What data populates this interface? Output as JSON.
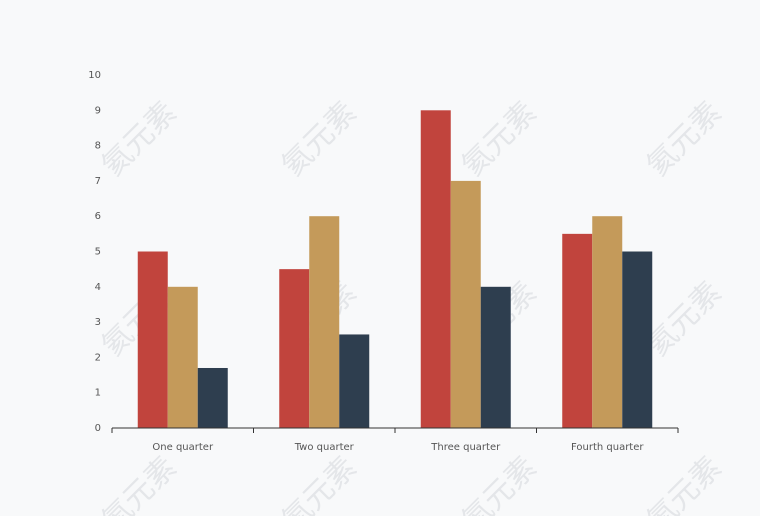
{
  "chart_data": {
    "type": "bar",
    "categories": [
      "One quarter",
      "Two quarter",
      "Three quarter",
      "Fourth quarter"
    ],
    "series": [
      {
        "color": "#c1443d",
        "values": [
          5,
          4.5,
          9,
          5.5
        ]
      },
      {
        "color": "#c49a5a",
        "values": [
          4,
          6,
          7,
          6
        ]
      },
      {
        "color": "#2e3e4f",
        "values": [
          1.7,
          2.65,
          4,
          5
        ]
      }
    ],
    "ylim": [
      0,
      10
    ],
    "yticks": [
      0,
      1,
      2,
      3,
      4,
      5,
      6,
      7,
      8,
      9,
      10
    ],
    "grid": false,
    "watermark": "氦元素"
  }
}
